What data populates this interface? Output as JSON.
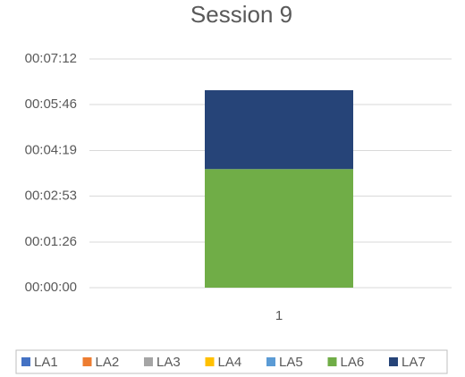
{
  "chart_data": {
    "type": "stacked_bar",
    "title": "Session 9",
    "categories": [
      "1"
    ],
    "series": [
      {
        "name": "LA1",
        "color": "#4472c4",
        "values": [
          0
        ]
      },
      {
        "name": "LA2",
        "color": "#ed7d31",
        "values": [
          0
        ]
      },
      {
        "name": "LA3",
        "color": "#a5a5a5",
        "values": [
          0
        ]
      },
      {
        "name": "LA4",
        "color": "#ffc000",
        "values": [
          0
        ]
      },
      {
        "name": "LA5",
        "color": "#5b9bd5",
        "values": [
          0
        ]
      },
      {
        "name": "LA6",
        "color": "#70ad47",
        "values": [
          224
        ]
      },
      {
        "name": "LA7",
        "color": "#264478",
        "values": [
          149
        ]
      }
    ],
    "ylim": [
      0,
      432
    ],
    "yticks": [
      {
        "value": 0,
        "label": "00:00:00"
      },
      {
        "value": 86,
        "label": "00:01:26"
      },
      {
        "value": 173,
        "label": "00:02:53"
      },
      {
        "value": 259,
        "label": "00:04:19"
      },
      {
        "value": 346,
        "label": "00:05:46"
      },
      {
        "value": 432,
        "label": "00:07:12"
      }
    ],
    "grid": true,
    "legend": "bottom"
  }
}
